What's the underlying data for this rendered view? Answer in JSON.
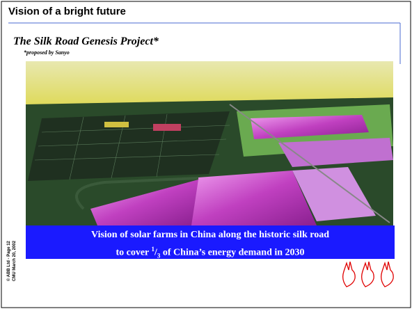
{
  "slide": {
    "title": "Vision of a bright future",
    "subtitle": "The Silk Road Genesis Project*",
    "footnote": "*proposed by Sanyo",
    "caption": {
      "line1": "Vision of solar farms in China along the historic silk road",
      "line2_before": "to cover ",
      "numerator": "1",
      "slash": "/",
      "denominator": "3",
      "line2_after": " of China’s energy demand in 2030"
    },
    "side_note": {
      "line1": "© ABB Ltd - Page 12",
      "line2": "CMU March 20, 2002"
    }
  }
}
